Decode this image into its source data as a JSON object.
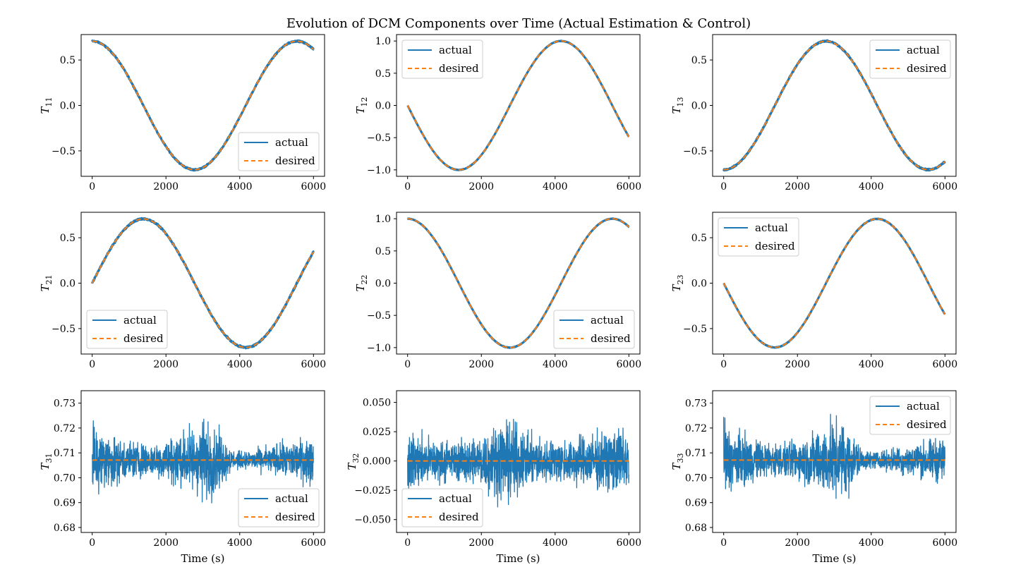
{
  "figure": {
    "title": "Evolution of DCM Components over Time (Actual Estimation & Control)"
  },
  "colors": {
    "actual": "#1f77b4",
    "desired": "#ff7f0e",
    "axes": "#000000",
    "legend_border": "#cccccc"
  },
  "chart_data": [
    {
      "id": "t11",
      "type": "line",
      "ylabel": "T",
      "ylabel_sub": "11",
      "xlabel": "",
      "xlim": [
        -300,
        6300
      ],
      "ylim": [
        -0.78,
        0.78
      ],
      "xticks": [
        0,
        2000,
        4000,
        6000
      ],
      "xtick_labels": [
        "0",
        "2000",
        "4000",
        "6000"
      ],
      "yticks": [
        -0.5,
        0.0,
        0.5
      ],
      "ytick_labels": [
        "−0.5",
        "0.0",
        "0.5"
      ],
      "legend_loc": "lower right",
      "desired": {
        "kind": "sine",
        "amp": 0.7071,
        "period": 5550,
        "phase": 90,
        "offset": 0,
        "x": [
          0,
          6000
        ]
      },
      "actual": {
        "noise": 0.012
      },
      "series": [
        {
          "name": "actual",
          "style": "solid"
        },
        {
          "name": "desired",
          "style": "dashed"
        }
      ]
    },
    {
      "id": "t12",
      "type": "line",
      "ylabel": "T",
      "ylabel_sub": "12",
      "xlabel": "",
      "xlim": [
        -300,
        6300
      ],
      "ylim": [
        -1.1,
        1.1
      ],
      "xticks": [
        0,
        2000,
        4000,
        6000
      ],
      "xtick_labels": [
        "0",
        "2000",
        "4000",
        "6000"
      ],
      "yticks": [
        -1.0,
        -0.5,
        0.0,
        0.5,
        1.0
      ],
      "ytick_labels": [
        "−1.0",
        "−0.5",
        "0.0",
        "0.5",
        "1.0"
      ],
      "legend_loc": "upper left",
      "desired": {
        "kind": "sine",
        "amp": 1.0,
        "period": 5550,
        "phase": 180,
        "offset": 0,
        "x": [
          0,
          6000
        ]
      },
      "actual": {
        "noise": 0.006
      },
      "series": [
        {
          "name": "actual",
          "style": "solid"
        },
        {
          "name": "desired",
          "style": "dashed"
        }
      ]
    },
    {
      "id": "t13",
      "type": "line",
      "ylabel": "T",
      "ylabel_sub": "13",
      "xlabel": "",
      "xlim": [
        -300,
        6300
      ],
      "ylim": [
        -0.78,
        0.78
      ],
      "xticks": [
        0,
        2000,
        4000,
        6000
      ],
      "xtick_labels": [
        "0",
        "2000",
        "4000",
        "6000"
      ],
      "yticks": [
        -0.5,
        0.0,
        0.5
      ],
      "ytick_labels": [
        "−0.5",
        "0.0",
        "0.5"
      ],
      "legend_loc": "upper right",
      "desired": {
        "kind": "sine",
        "amp": 0.7071,
        "period": 5550,
        "phase": 270,
        "offset": 0,
        "x": [
          0,
          6000
        ]
      },
      "actual": {
        "noise": 0.012
      },
      "series": [
        {
          "name": "actual",
          "style": "solid"
        },
        {
          "name": "desired",
          "style": "dashed"
        }
      ]
    },
    {
      "id": "t21",
      "type": "line",
      "ylabel": "T",
      "ylabel_sub": "21",
      "xlabel": "",
      "xlim": [
        -300,
        6300
      ],
      "ylim": [
        -0.78,
        0.78
      ],
      "xticks": [
        0,
        2000,
        4000,
        6000
      ],
      "xtick_labels": [
        "0",
        "2000",
        "4000",
        "6000"
      ],
      "yticks": [
        -0.5,
        0.0,
        0.5
      ],
      "ytick_labels": [
        "−0.5",
        "0.0",
        "0.5"
      ],
      "legend_loc": "lower left",
      "desired": {
        "kind": "sine",
        "amp": 0.7071,
        "period": 5550,
        "phase": 0,
        "offset": 0,
        "x": [
          0,
          6000
        ]
      },
      "actual": {
        "noise": 0.014
      },
      "series": [
        {
          "name": "actual",
          "style": "solid"
        },
        {
          "name": "desired",
          "style": "dashed"
        }
      ]
    },
    {
      "id": "t22",
      "type": "line",
      "ylabel": "T",
      "ylabel_sub": "22",
      "xlabel": "",
      "xlim": [
        -300,
        6300
      ],
      "ylim": [
        -1.1,
        1.1
      ],
      "xticks": [
        0,
        2000,
        4000,
        6000
      ],
      "xtick_labels": [
        "0",
        "2000",
        "4000",
        "6000"
      ],
      "yticks": [
        -1.0,
        -0.5,
        0.0,
        0.5,
        1.0
      ],
      "ytick_labels": [
        "−1.0",
        "−0.5",
        "0.0",
        "0.5",
        "1.0"
      ],
      "legend_loc": "lower right",
      "desired": {
        "kind": "sine",
        "amp": 1.0,
        "period": 5550,
        "phase": 90,
        "offset": 0,
        "x": [
          0,
          6000
        ]
      },
      "actual": {
        "noise": 0.006
      },
      "series": [
        {
          "name": "actual",
          "style": "solid"
        },
        {
          "name": "desired",
          "style": "dashed"
        }
      ]
    },
    {
      "id": "t23",
      "type": "line",
      "ylabel": "T",
      "ylabel_sub": "23",
      "xlabel": "",
      "xlim": [
        -300,
        6300
      ],
      "ylim": [
        -0.78,
        0.78
      ],
      "xticks": [
        0,
        2000,
        4000,
        6000
      ],
      "xtick_labels": [
        "0",
        "2000",
        "4000",
        "6000"
      ],
      "yticks": [
        -0.5,
        0.0,
        0.5
      ],
      "ytick_labels": [
        "−0.5",
        "0.0",
        "0.5"
      ],
      "legend_loc": "upper left",
      "desired": {
        "kind": "sine",
        "amp": 0.7071,
        "period": 5550,
        "phase": 180,
        "offset": 0,
        "x": [
          0,
          6000
        ]
      },
      "actual": {
        "noise": 0.005
      },
      "series": [
        {
          "name": "actual",
          "style": "solid"
        },
        {
          "name": "desired",
          "style": "dashed"
        }
      ]
    },
    {
      "id": "t31",
      "type": "line",
      "ylabel": "T",
      "ylabel_sub": "31",
      "xlabel": "Time (s)",
      "xlim": [
        -300,
        6300
      ],
      "ylim": [
        0.678,
        0.735
      ],
      "xticks": [
        0,
        2000,
        4000,
        6000
      ],
      "xtick_labels": [
        "0",
        "2000",
        "4000",
        "6000"
      ],
      "yticks": [
        0.68,
        0.69,
        0.7,
        0.71,
        0.72,
        0.73
      ],
      "ytick_labels": [
        "0.68",
        "0.69",
        "0.70",
        "0.71",
        "0.72",
        "0.73"
      ],
      "legend_loc": "lower right",
      "desired": {
        "kind": "const",
        "value": 0.7071,
        "x": [
          0,
          6000
        ]
      },
      "actual": {
        "noise_env": [
          [
            0,
            0.026
          ],
          [
            150,
            0.016
          ],
          [
            900,
            0.01
          ],
          [
            1600,
            0.008
          ],
          [
            2200,
            0.012
          ],
          [
            3000,
            0.02
          ],
          [
            3300,
            0.018
          ],
          [
            3800,
            0.005
          ],
          [
            4200,
            0.004
          ],
          [
            5000,
            0.008
          ],
          [
            6000,
            0.012
          ]
        ]
      },
      "series": [
        {
          "name": "actual",
          "style": "solid"
        },
        {
          "name": "desired",
          "style": "dashed"
        }
      ]
    },
    {
      "id": "t32",
      "type": "line",
      "ylabel": "T",
      "ylabel_sub": "32",
      "xlabel": "Time (s)",
      "xlim": [
        -300,
        6300
      ],
      "ylim": [
        -0.061,
        0.06
      ],
      "xticks": [
        0,
        2000,
        4000,
        6000
      ],
      "xtick_labels": [
        "0",
        "2000",
        "4000",
        "6000"
      ],
      "yticks": [
        -0.05,
        -0.025,
        0.0,
        0.025,
        0.05
      ],
      "ytick_labels": [
        "−0.050",
        "−0.025",
        "0.000",
        "0.025",
        "0.050"
      ],
      "legend_loc": "lower left",
      "desired": {
        "kind": "const",
        "value": 0.0,
        "x": [
          0,
          6000
        ]
      },
      "actual": {
        "noise_env": [
          [
            0,
            0.032
          ],
          [
            600,
            0.025
          ],
          [
            1300,
            0.02
          ],
          [
            2000,
            0.03
          ],
          [
            2800,
            0.045
          ],
          [
            3200,
            0.028
          ],
          [
            4000,
            0.022
          ],
          [
            5200,
            0.03
          ],
          [
            6000,
            0.035
          ]
        ]
      },
      "series": [
        {
          "name": "actual",
          "style": "solid"
        },
        {
          "name": "desired",
          "style": "dashed"
        }
      ]
    },
    {
      "id": "t33",
      "type": "line",
      "ylabel": "T",
      "ylabel_sub": "33",
      "xlabel": "Time (s)",
      "xlim": [
        -300,
        6300
      ],
      "ylim": [
        0.678,
        0.735
      ],
      "xticks": [
        0,
        2000,
        4000,
        6000
      ],
      "xtick_labels": [
        "0",
        "2000",
        "4000",
        "6000"
      ],
      "yticks": [
        0.68,
        0.69,
        0.7,
        0.71,
        0.72,
        0.73
      ],
      "ytick_labels": [
        "0.68",
        "0.69",
        "0.70",
        "0.71",
        "0.72",
        "0.73"
      ],
      "legend_loc": "upper right",
      "desired": {
        "kind": "const",
        "value": 0.7071,
        "x": [
          0,
          6000
        ]
      },
      "actual": {
        "noise_env": [
          [
            0,
            0.026
          ],
          [
            150,
            0.016
          ],
          [
            900,
            0.01
          ],
          [
            1600,
            0.008
          ],
          [
            2200,
            0.012
          ],
          [
            3000,
            0.02
          ],
          [
            3300,
            0.018
          ],
          [
            3800,
            0.005
          ],
          [
            4200,
            0.004
          ],
          [
            5000,
            0.008
          ],
          [
            6000,
            0.012
          ]
        ]
      },
      "series": [
        {
          "name": "actual",
          "style": "solid"
        },
        {
          "name": "desired",
          "style": "dashed"
        }
      ]
    }
  ]
}
